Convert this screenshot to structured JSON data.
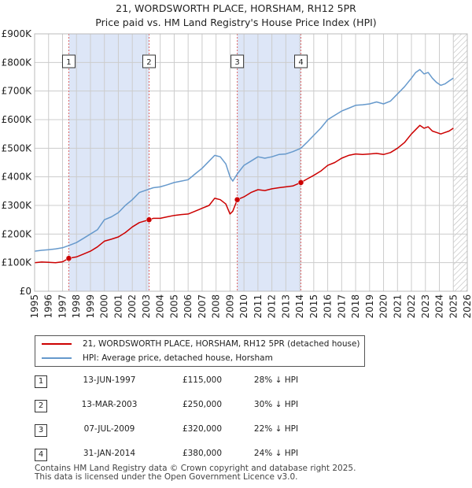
{
  "title": {
    "line1": "21, WORDSWORTH PLACE, HORSHAM, RH12 5PR",
    "line2": "Price paid vs. HM Land Registry's House Price Index (HPI)"
  },
  "colors": {
    "price_line": "#cc0000",
    "hpi_line": "#6699cc",
    "shade": "#dde6f7",
    "hatch": "#bbbbbb",
    "marker_line": "#dd6666"
  },
  "chart_data": {
    "type": "line",
    "title": "Price paid vs. HM Land Registry's House Price Index (HPI)",
    "xlabel": "",
    "ylabel": "",
    "xlim": [
      1995,
      2026
    ],
    "ylim": [
      0,
      900000
    ],
    "x_ticks": [
      "1995",
      "1996",
      "1997",
      "1998",
      "1999",
      "2000",
      "2001",
      "2002",
      "2003",
      "2004",
      "2005",
      "2006",
      "2007",
      "2008",
      "2009",
      "2010",
      "2011",
      "2012",
      "2013",
      "2014",
      "2015",
      "2016",
      "2017",
      "2018",
      "2019",
      "2020",
      "2021",
      "2022",
      "2023",
      "2024",
      "2025",
      "2026"
    ],
    "y_ticks": [
      {
        "value": 0,
        "label": "£0"
      },
      {
        "value": 100000,
        "label": "£100K"
      },
      {
        "value": 200000,
        "label": "£200K"
      },
      {
        "value": 300000,
        "label": "£300K"
      },
      {
        "value": 400000,
        "label": "£400K"
      },
      {
        "value": 500000,
        "label": "£500K"
      },
      {
        "value": 600000,
        "label": "£600K"
      },
      {
        "value": 700000,
        "label": "£700K"
      },
      {
        "value": 800000,
        "label": "£800K"
      },
      {
        "value": 900000,
        "label": "£900K"
      }
    ],
    "grid": true,
    "hatched_future_from": 2025.0,
    "shaded_periods": [
      [
        1997.45,
        2003.2
      ],
      [
        2009.52,
        2014.08
      ]
    ],
    "series": [
      {
        "name": "21, WORDSWORTH PLACE, HORSHAM, RH12 5PR (detached house)",
        "color": "#cc0000",
        "x": [
          1995.0,
          1995.5,
          1996.0,
          1996.5,
          1997.0,
          1997.45,
          1998.0,
          1998.5,
          1999.0,
          1999.5,
          2000.0,
          2000.5,
          2001.0,
          2001.5,
          2002.0,
          2002.5,
          2003.2,
          2003.5,
          2004.0,
          2004.5,
          2005.0,
          2005.5,
          2006.0,
          2006.5,
          2007.0,
          2007.5,
          2007.9,
          2008.3,
          2008.7,
          2009.0,
          2009.2,
          2009.52,
          2010.0,
          2010.5,
          2011.0,
          2011.5,
          2012.0,
          2012.5,
          2013.0,
          2013.5,
          2014.08,
          2014.5,
          2015.0,
          2015.5,
          2016.0,
          2016.5,
          2017.0,
          2017.5,
          2018.0,
          2018.5,
          2019.0,
          2019.5,
          2020.0,
          2020.5,
          2021.0,
          2021.5,
          2022.0,
          2022.3,
          2022.6,
          2022.9,
          2023.2,
          2023.5,
          2023.8,
          2024.1,
          2024.4,
          2024.7,
          2025.0
        ],
        "y": [
          100000,
          102000,
          101000,
          100000,
          103000,
          115000,
          120000,
          130000,
          140000,
          155000,
          175000,
          182000,
          190000,
          205000,
          225000,
          240000,
          250000,
          255000,
          255000,
          260000,
          265000,
          268000,
          270000,
          280000,
          290000,
          300000,
          325000,
          320000,
          305000,
          270000,
          280000,
          320000,
          330000,
          345000,
          355000,
          352000,
          358000,
          362000,
          365000,
          368000,
          380000,
          392000,
          405000,
          420000,
          440000,
          450000,
          465000,
          475000,
          480000,
          478000,
          480000,
          482000,
          478000,
          485000,
          500000,
          520000,
          550000,
          565000,
          580000,
          570000,
          575000,
          560000,
          555000,
          550000,
          555000,
          560000,
          570000
        ]
      },
      {
        "name": "HPI: Average price, detached house, Horsham",
        "color": "#6699cc",
        "x": [
          1995.0,
          1995.5,
          1996.0,
          1996.5,
          1997.0,
          1997.45,
          1998.0,
          1998.5,
          1999.0,
          1999.5,
          2000.0,
          2000.5,
          2001.0,
          2001.5,
          2002.0,
          2002.5,
          2003.2,
          2003.5,
          2004.0,
          2004.5,
          2005.0,
          2005.5,
          2006.0,
          2006.5,
          2007.0,
          2007.5,
          2007.9,
          2008.3,
          2008.7,
          2009.0,
          2009.2,
          2009.52,
          2010.0,
          2010.5,
          2011.0,
          2011.5,
          2012.0,
          2012.5,
          2013.0,
          2013.5,
          2014.08,
          2014.5,
          2015.0,
          2015.5,
          2016.0,
          2016.5,
          2017.0,
          2017.5,
          2018.0,
          2018.5,
          2019.0,
          2019.5,
          2020.0,
          2020.5,
          2021.0,
          2021.5,
          2022.0,
          2022.3,
          2022.6,
          2022.9,
          2023.2,
          2023.5,
          2023.8,
          2024.1,
          2024.4,
          2024.7,
          2025.0
        ],
        "y": [
          140000,
          143000,
          145000,
          148000,
          152000,
          160000,
          170000,
          185000,
          200000,
          215000,
          250000,
          260000,
          275000,
          300000,
          320000,
          345000,
          357000,
          362000,
          365000,
          372000,
          380000,
          385000,
          390000,
          410000,
          430000,
          455000,
          475000,
          470000,
          445000,
          400000,
          385000,
          410000,
          440000,
          455000,
          470000,
          465000,
          470000,
          478000,
          480000,
          488000,
          500000,
          520000,
          545000,
          570000,
          600000,
          615000,
          630000,
          640000,
          650000,
          652000,
          655000,
          662000,
          655000,
          665000,
          690000,
          715000,
          745000,
          765000,
          775000,
          760000,
          765000,
          745000,
          730000,
          720000,
          725000,
          735000,
          745000
        ]
      }
    ],
    "sales": [
      {
        "label": "1",
        "x": 1997.45,
        "y": 115000
      },
      {
        "label": "2",
        "x": 2003.2,
        "y": 250000
      },
      {
        "label": "3",
        "x": 2009.52,
        "y": 320000
      },
      {
        "label": "4",
        "x": 2014.08,
        "y": 380000
      }
    ]
  },
  "legend": {
    "price": "21, WORDSWORTH PLACE, HORSHAM, RH12 5PR (detached house)",
    "hpi": "HPI: Average price, detached house, Horsham"
  },
  "sales_table": [
    {
      "num": "1",
      "date": "13-JUN-1997",
      "price": "£115,000",
      "hpi": "28% ↓ HPI"
    },
    {
      "num": "2",
      "date": "13-MAR-2003",
      "price": "£250,000",
      "hpi": "30% ↓ HPI"
    },
    {
      "num": "3",
      "date": "07-JUL-2009",
      "price": "£320,000",
      "hpi": "22% ↓ HPI"
    },
    {
      "num": "4",
      "date": "31-JAN-2014",
      "price": "£380,000",
      "hpi": "24% ↓ HPI"
    }
  ],
  "footer": {
    "line1": "Contains HM Land Registry data © Crown copyright and database right 2025.",
    "line2": "This data is licensed under the Open Government Licence v3.0."
  }
}
